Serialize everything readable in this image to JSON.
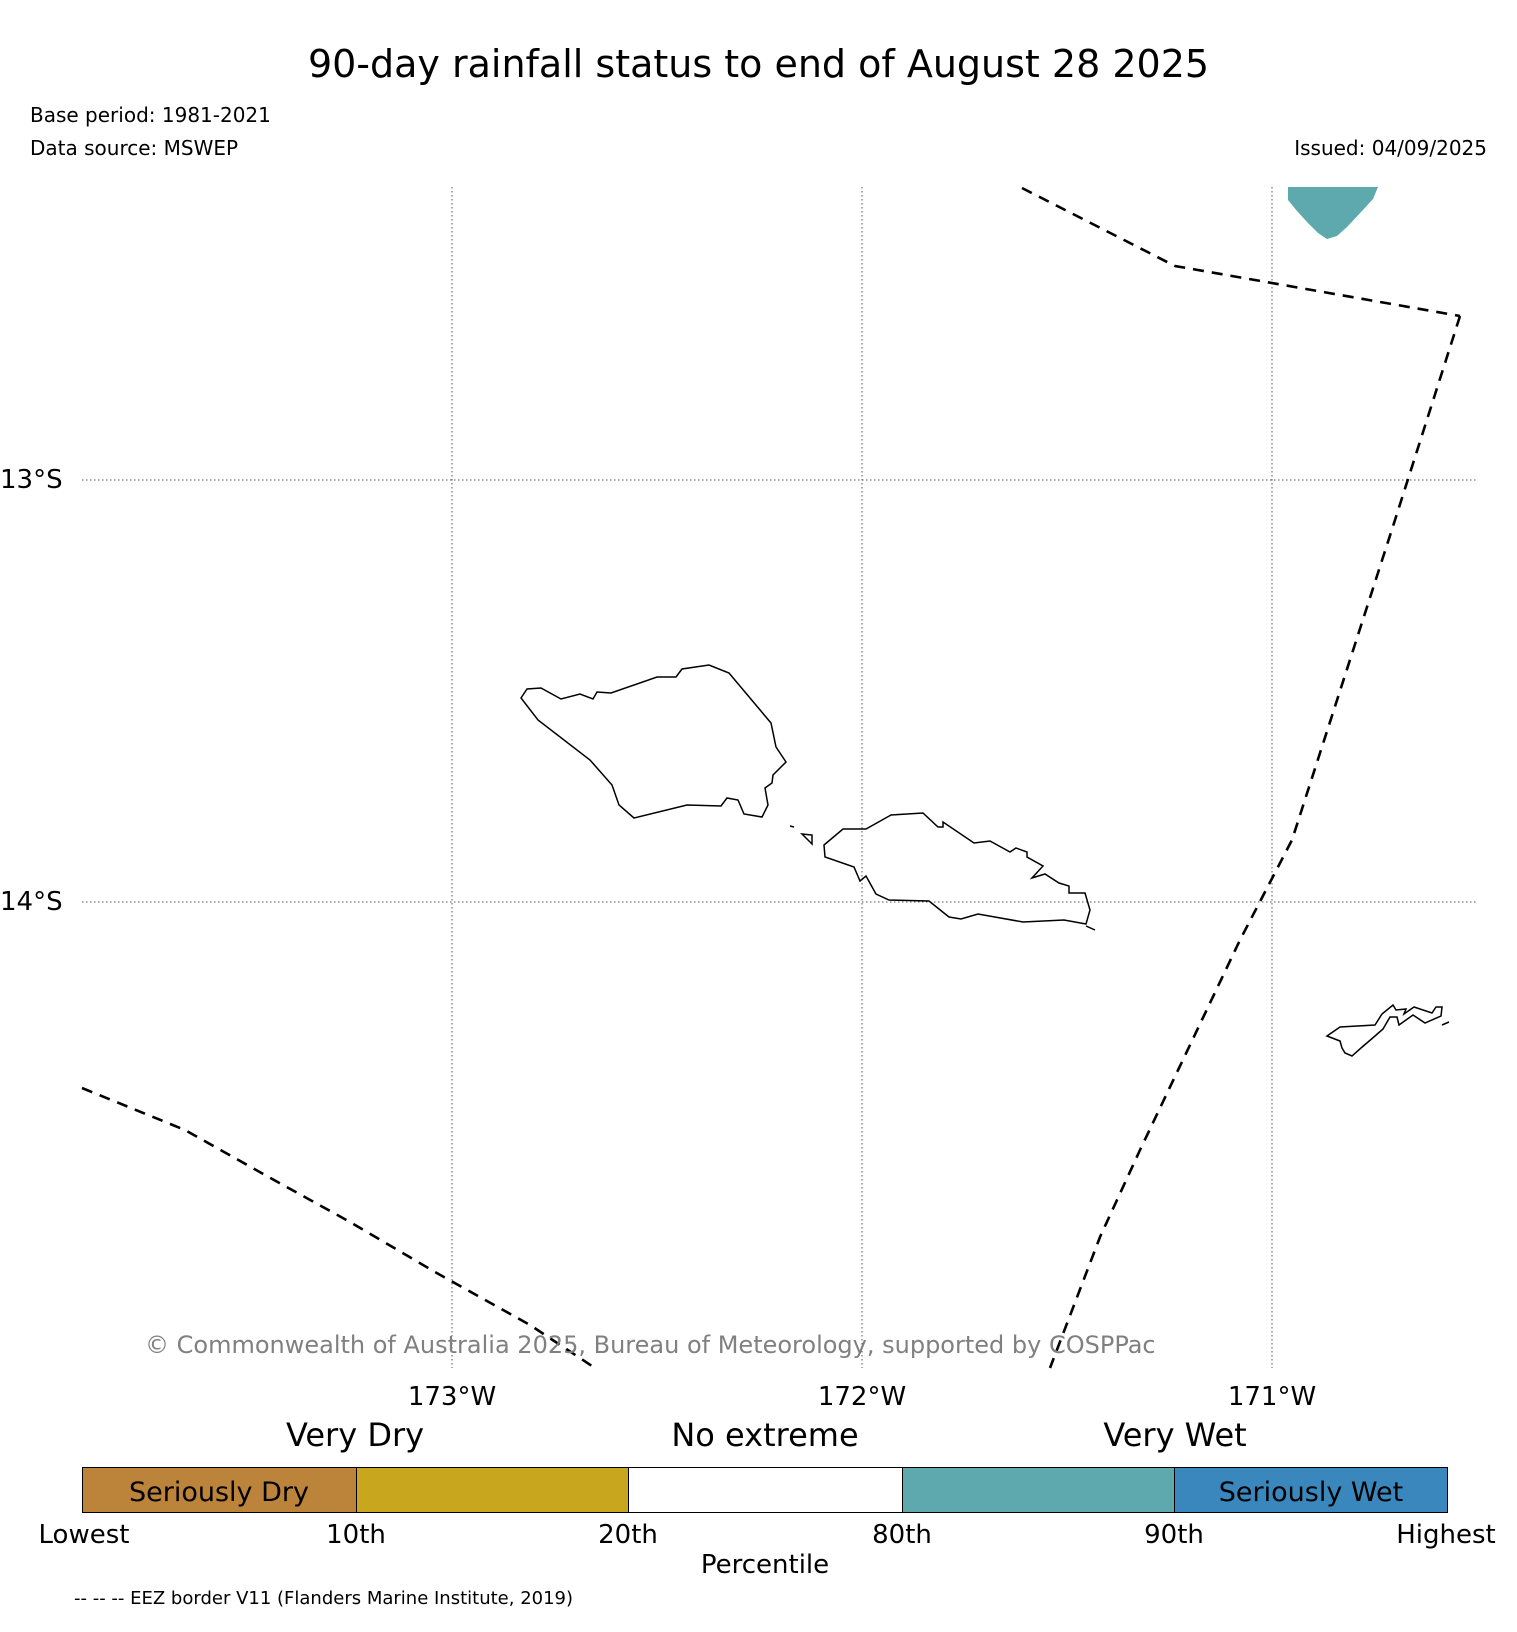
{
  "header": {
    "title": "90-day rainfall status to end of August 28 2025",
    "base_period": "Base period: 1981-2021",
    "data_source": "Data source: MSWEP",
    "issued": "Issued: 04/09/2025"
  },
  "map": {
    "lat_labels": [
      "13°S",
      "14°S"
    ],
    "lon_labels": [
      "173°W",
      "172°W",
      "171°W"
    ],
    "copyright": "© Commonwealth of Australia 2025, Bureau of Meteorology, supported by COSPPac",
    "gridline_style": "dotted",
    "eez_style": "dashed"
  },
  "legend": {
    "categories": [
      "Very Dry",
      "No extreme",
      "Very Wet"
    ],
    "segments": [
      {
        "label": "Seriously Dry",
        "color": "#BC833B"
      },
      {
        "label": "",
        "color": "#C8A71F"
      },
      {
        "label": "",
        "color": "#FFFFFF"
      },
      {
        "label": "",
        "color": "#5EA9AD"
      },
      {
        "label": "Seriously Wet",
        "color": "#3A87BD"
      }
    ],
    "ticks": [
      "Lowest",
      "10th",
      "20th",
      "80th",
      "90th",
      "Highest"
    ],
    "axis_label": "Percentile"
  },
  "footer": {
    "eez_note": "-- -- -- EEZ border V11 (Flanders Marine Institute, 2019)"
  }
}
